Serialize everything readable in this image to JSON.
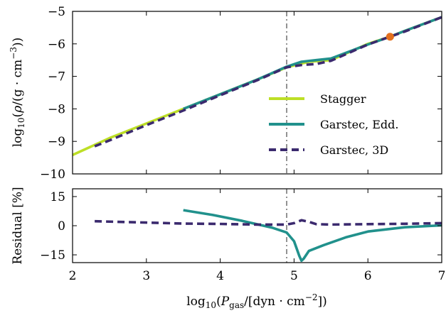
{
  "chart_data": [
    {
      "type": "line",
      "panel": "top",
      "ylabel": "log10(ρ/(g · cm−3))",
      "xlim": [
        2,
        7
      ],
      "ylim": [
        -10,
        -5
      ],
      "yticks": [
        "−10",
        "−9",
        "−8",
        "−7",
        "−6",
        "−5"
      ],
      "vline_x": 4.9,
      "marker": {
        "x": 6.3,
        "y": -5.78,
        "color": "#e4701e"
      },
      "legend": {
        "placement": "lower-right"
      },
      "series": [
        {
          "name": "Stagger",
          "color": "#bddf26",
          "style": "solid",
          "x": [
            2.0,
            2.5,
            3.0,
            3.5,
            4.0,
            4.5,
            4.9,
            5.2,
            5.5,
            6.0,
            6.3,
            6.5,
            7.0
          ],
          "y": [
            -9.42,
            -8.9,
            -8.45,
            -8.0,
            -7.55,
            -7.1,
            -6.72,
            -6.55,
            -6.5,
            -6.0,
            -5.78,
            -5.6,
            -5.18
          ]
        },
        {
          "name": "Garstec, Edd.",
          "color": "#21918c",
          "style": "solid",
          "x": [
            3.5,
            4.0,
            4.5,
            4.9,
            5.1,
            5.3,
            5.5,
            6.0,
            6.3,
            6.5,
            7.0
          ],
          "y": [
            -8.0,
            -7.55,
            -7.1,
            -6.7,
            -6.55,
            -6.5,
            -6.45,
            -6.02,
            -5.78,
            -5.6,
            -5.18
          ]
        },
        {
          "name": "Garstec, 3D",
          "color": "#3b2a6e",
          "style": "dashed",
          "x": [
            2.3,
            2.5,
            3.0,
            3.5,
            4.0,
            4.5,
            4.9,
            5.1,
            5.3,
            5.5,
            6.0,
            6.3,
            6.5,
            7.0
          ],
          "y": [
            -9.15,
            -8.97,
            -8.5,
            -8.05,
            -7.58,
            -7.12,
            -6.72,
            -6.65,
            -6.62,
            -6.52,
            -6.02,
            -5.78,
            -5.62,
            -5.18
          ]
        }
      ]
    },
    {
      "type": "line",
      "panel": "bottom",
      "xlabel": "log10(Pgas/[dyn · cm−2])",
      "ylabel": "Residual [%]",
      "xlim": [
        2,
        7
      ],
      "ylim": [
        -19,
        19
      ],
      "xticks": [
        "2",
        "3",
        "4",
        "5",
        "6",
        "7"
      ],
      "yticks": [
        "−15",
        "0",
        "15"
      ],
      "vline_x": 4.9,
      "series": [
        {
          "name": "Garstec, Edd.",
          "color": "#21918c",
          "style": "solid",
          "x": [
            3.5,
            3.9,
            4.3,
            4.7,
            4.9,
            5.0,
            5.07,
            5.1,
            5.13,
            5.2,
            5.4,
            5.7,
            6.0,
            6.5,
            7.0
          ],
          "y": [
            8.0,
            5.5,
            2.5,
            -1.0,
            -3.5,
            -8.0,
            -15.5,
            -18.0,
            -17.0,
            -13.0,
            -10.0,
            -6.0,
            -3.0,
            -0.8,
            0.2
          ]
        },
        {
          "name": "Garstec, 3D",
          "color": "#3b2a6e",
          "style": "dashed",
          "x": [
            2.3,
            3.0,
            3.5,
            4.0,
            4.5,
            4.9,
            5.0,
            5.1,
            5.2,
            5.3,
            5.5,
            6.0,
            6.5,
            7.0
          ],
          "y": [
            2.3,
            1.6,
            1.1,
            0.9,
            0.6,
            0.6,
            1.3,
            2.8,
            2.0,
            0.8,
            0.6,
            0.8,
            1.0,
            1.3
          ]
        }
      ]
    }
  ]
}
